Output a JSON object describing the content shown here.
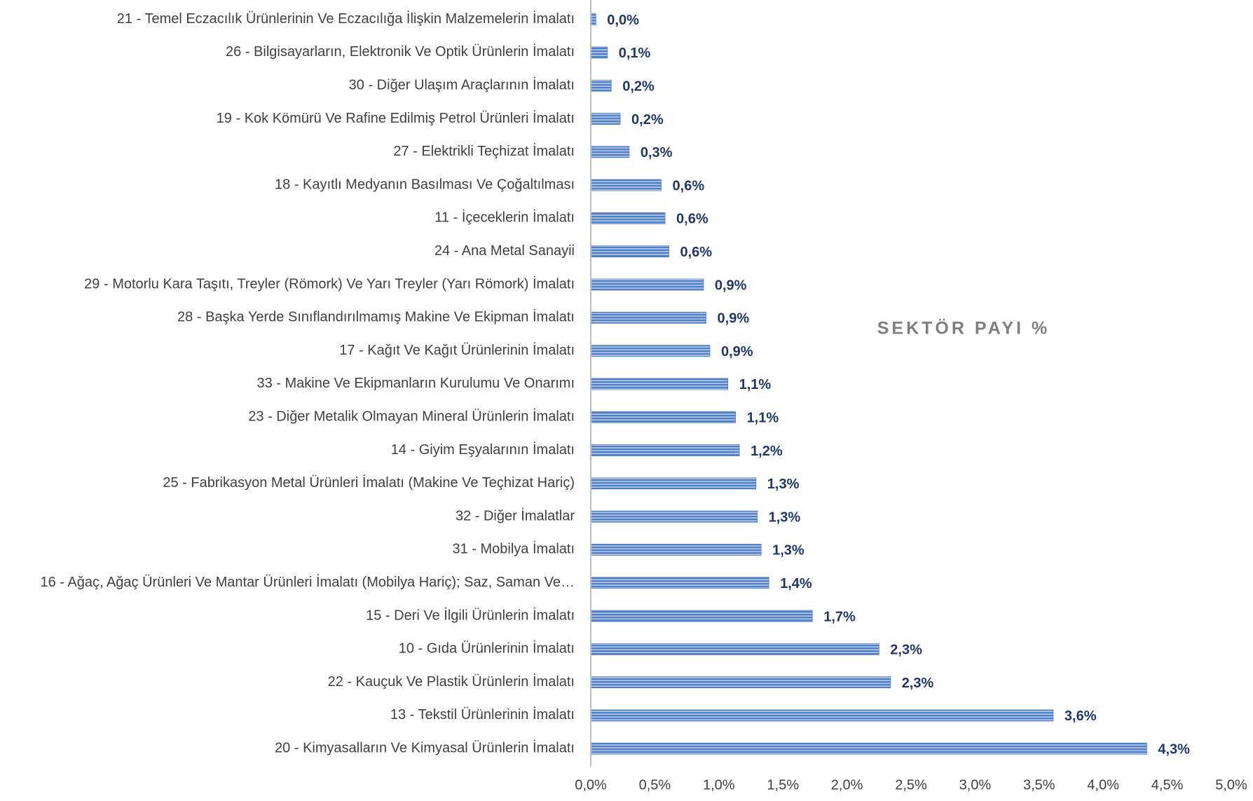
{
  "chart_data": {
    "type": "bar",
    "orientation": "horizontal",
    "title": "SEKTÖR PAYI %",
    "categories": [
      "21 - Temel Eczacılık Ürünlerinin Ve Eczacılığa İlişkin Malzemelerin İmalatı",
      "26 - Bilgisayarların, Elektronik Ve Optik Ürünlerin İmalatı",
      "30 - Diğer Ulaşım Araçlarının İmalatı",
      "19 - Kok Kömürü Ve Rafine Edilmiş Petrol Ürünleri İmalatı",
      "27 - Elektrikli Teçhizat İmalatı",
      "18 - Kayıtlı Medyanın Basılması Ve Çoğaltılması",
      "11 - İçeceklerin İmalatı",
      "24 - Ana Metal Sanayii",
      "29 - Motorlu Kara Taşıtı, Treyler (Römork) Ve Yarı Treyler (Yarı Römork) İmalatı",
      "28 - Başka Yerde Sınıflandırılmamış Makine Ve Ekipman İmalatı",
      "17 - Kağıt Ve Kağıt Ürünlerinin İmalatı",
      "33 - Makine Ve Ekipmanların Kurulumu Ve Onarımı",
      "23 - Diğer Metalik Olmayan Mineral Ürünlerin İmalatı",
      "14 - Giyim Eşyalarının İmalatı",
      "25 - Fabrikasyon Metal Ürünleri İmalatı (Makine Ve Teçhizat Hariç)",
      "32 - Diğer İmalatlar",
      "31 - Mobilya İmalatı",
      "16 - Ağaç, Ağaç Ürünleri Ve Mantar Ürünleri İmalatı (Mobilya Hariç); Saz, Saman Ve…",
      "15 - Deri Ve İlgili Ürünlerin İmalatı",
      "10 - Gıda Ürünlerinin İmalatı",
      "22 - Kauçuk Ve Plastik Ürünlerin İmalatı",
      "13 - Tekstil Ürünlerinin İmalatı",
      "20 - Kimyasalların Ve Kimyasal Ürünlerin İmalatı"
    ],
    "values": [
      0.04,
      0.13,
      0.16,
      0.23,
      0.3,
      0.55,
      0.58,
      0.61,
      0.88,
      0.9,
      0.93,
      1.07,
      1.13,
      1.16,
      1.29,
      1.3,
      1.33,
      1.39,
      1.73,
      2.25,
      2.34,
      3.61,
      4.34
    ],
    "value_labels": [
      "0,0%",
      "0,1%",
      "0,2%",
      "0,2%",
      "0,3%",
      "0,6%",
      "0,6%",
      "0,6%",
      "0,9%",
      "0,9%",
      "0,9%",
      "1,1%",
      "1,1%",
      "1,2%",
      "1,3%",
      "1,3%",
      "1,3%",
      "1,4%",
      "1,7%",
      "2,3%",
      "2,3%",
      "3,6%",
      "4,3%"
    ],
    "color": "#4f7fc4",
    "xlim": [
      0,
      5
    ],
    "xticks": [
      {
        "value": 0,
        "label": "0,0%"
      },
      {
        "value": 0.5,
        "label": "0,5%"
      },
      {
        "value": 1,
        "label": "1,0%"
      },
      {
        "value": 1.5,
        "label": "1,5%"
      },
      {
        "value": 2,
        "label": "2,0%"
      },
      {
        "value": 2.5,
        "label": "2,5%"
      },
      {
        "value": 3,
        "label": "3,0%"
      },
      {
        "value": 3.5,
        "label": "3,5%"
      },
      {
        "value": 4,
        "label": "4,0%"
      },
      {
        "value": 4.5,
        "label": "4,5%"
      },
      {
        "value": 5,
        "label": "5,0%"
      }
    ],
    "grid": false
  }
}
